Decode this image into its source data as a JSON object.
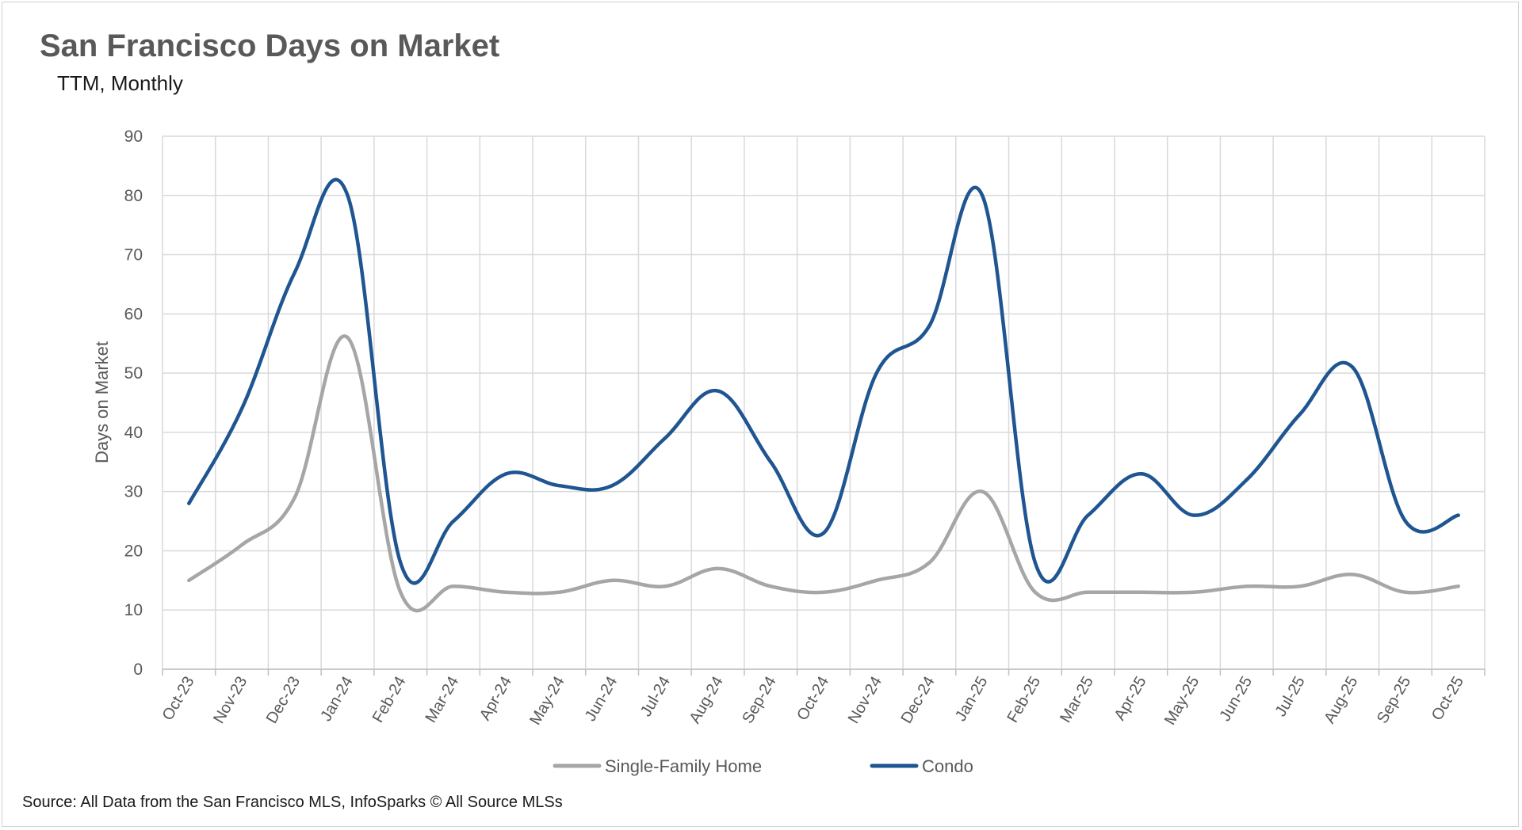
{
  "chart_data": {
    "type": "line",
    "title": "San Francisco Days on Market",
    "subtitle": "TTM, Monthly",
    "ylabel": "Days on Market",
    "xlabel": "",
    "ylim": [
      0,
      90
    ],
    "yticks": [
      0,
      10,
      20,
      30,
      40,
      50,
      60,
      70,
      80,
      90
    ],
    "grid": true,
    "legend_position": "bottom",
    "categories": [
      "Oct-23",
      "Nov-23",
      "Dec-23",
      "Jan-24",
      "Feb-24",
      "Mar-24",
      "Apr-24",
      "May-24",
      "Jun-24",
      "Jul-24",
      "Aug-24",
      "Sep-24",
      "Oct-24",
      "Nov-24",
      "Dec-24",
      "Jan-25",
      "Feb-25",
      "Mar-25",
      "Apr-25",
      "May-25",
      "Jun-25",
      "Jul-25",
      "Aug-25",
      "Sep-25",
      "Oct-25"
    ],
    "series": [
      {
        "name": "Single-Family Home",
        "color": "#a6a6a6",
        "values": [
          15,
          21,
          29,
          56,
          13,
          14,
          13,
          13,
          15,
          14,
          17,
          14,
          13,
          15,
          18,
          30,
          13,
          13,
          13,
          13,
          14,
          14,
          16,
          13,
          14
        ]
      },
      {
        "name": "Condo",
        "color": "#1f5591",
        "values": [
          28,
          44,
          67,
          80,
          18,
          25,
          33,
          31,
          31,
          39,
          47,
          35,
          23,
          50,
          58,
          80,
          18,
          26,
          33,
          26,
          32,
          43,
          51,
          25,
          26
        ]
      }
    ],
    "source": "Source: All Data from the San Francisco MLS, InfoSparks © All Source MLSs"
  }
}
